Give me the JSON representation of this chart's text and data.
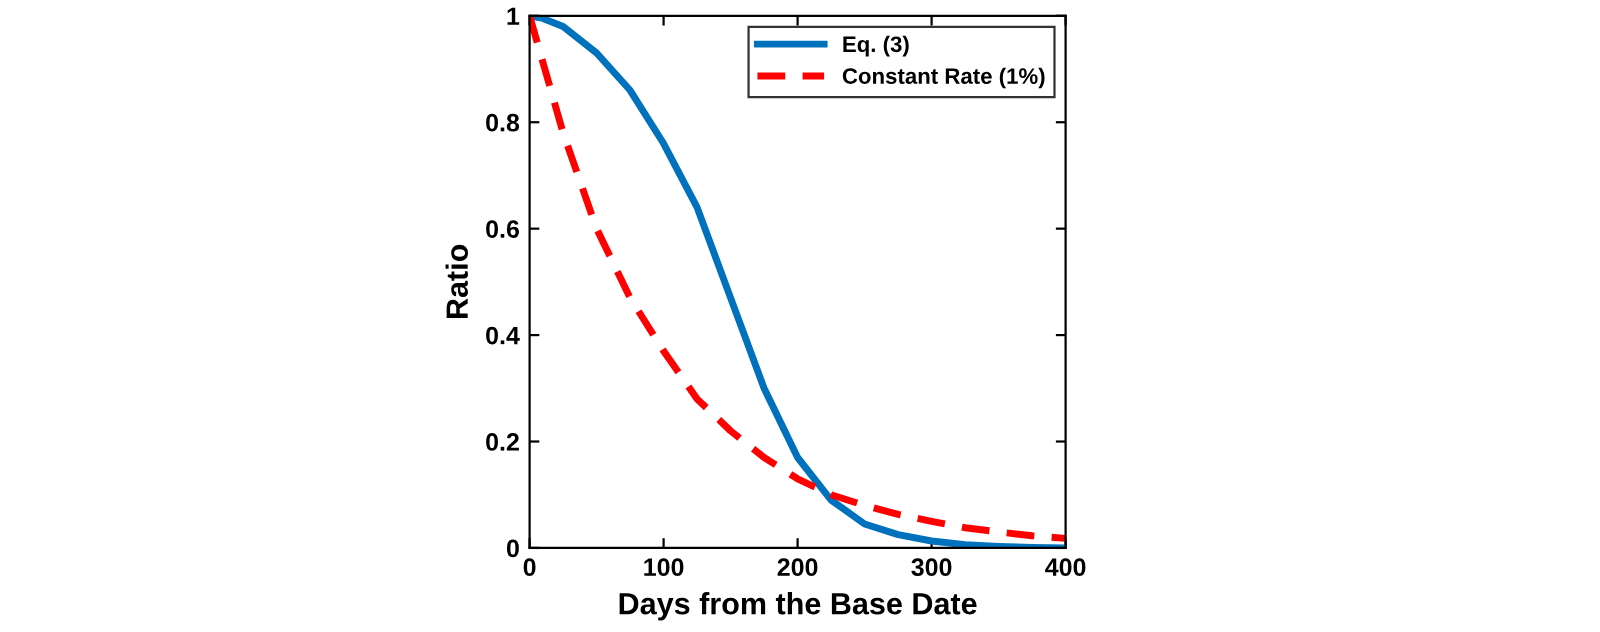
{
  "chart_data": {
    "type": "line",
    "xlabel": "Days from the Base Date",
    "ylabel": "Ratio",
    "xlim": [
      0,
      400
    ],
    "ylim": [
      0,
      1
    ],
    "xticks": [
      0,
      100,
      200,
      300,
      400
    ],
    "yticks": [
      0,
      0.2,
      0.4,
      0.6,
      0.8,
      1
    ],
    "legend": "top right",
    "grid": false,
    "series": [
      {
        "name": "Eq. (3)",
        "color": "#0072bd",
        "line_style": "solid",
        "x": [
          0,
          10,
          25,
          50,
          75,
          100,
          125,
          150,
          175,
          200,
          225,
          250,
          275,
          300,
          325,
          350,
          375,
          400
        ],
        "values": [
          1.0,
          0.995,
          0.98,
          0.93,
          0.86,
          0.76,
          0.64,
          0.47,
          0.3,
          0.17,
          0.09,
          0.045,
          0.025,
          0.013,
          0.006,
          0.003,
          0.001,
          0.0
        ]
      },
      {
        "name": "Constant Rate (1%)",
        "color": "#ff0000",
        "line_style": "dashed",
        "x": [
          0,
          25,
          50,
          75,
          100,
          125,
          150,
          175,
          200,
          225,
          250,
          275,
          300,
          325,
          350,
          375,
          400
        ],
        "values": [
          1.0,
          0.78,
          0.6,
          0.47,
          0.37,
          0.28,
          0.22,
          0.17,
          0.13,
          0.1,
          0.08,
          0.063,
          0.05,
          0.038,
          0.03,
          0.023,
          0.018
        ]
      }
    ]
  }
}
